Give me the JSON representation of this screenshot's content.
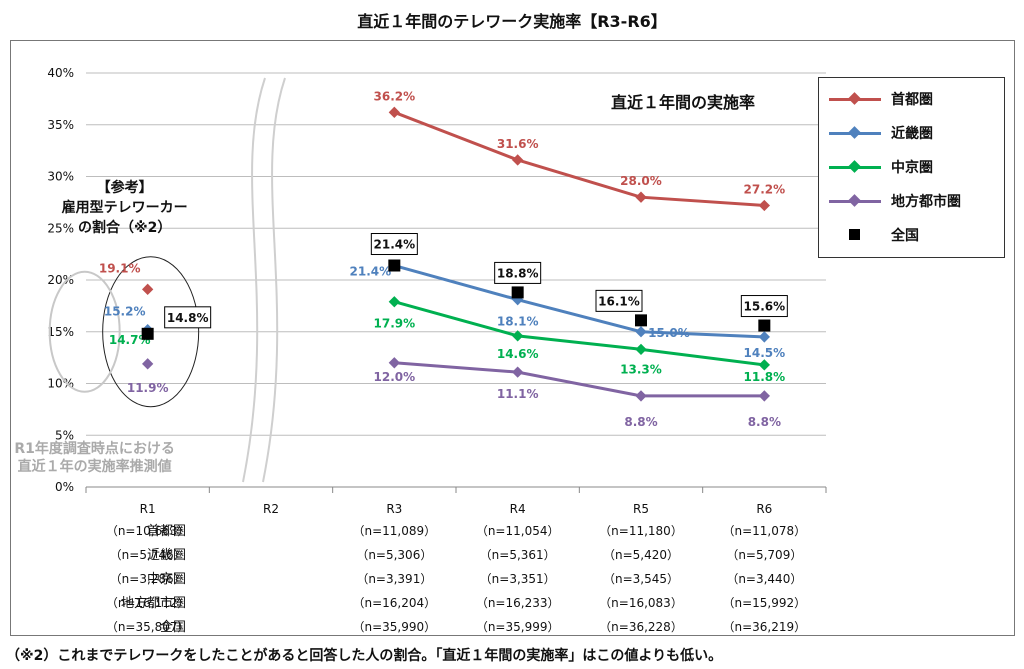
{
  "title": "直近１年間のテレワーク実施率【R3-R6】",
  "colors": {
    "shutoken": "#c0504d",
    "kinki": "#4f81bd",
    "chukyo": "#00b050",
    "chiho": "#8064a2",
    "zenkoku": "#000000"
  },
  "chart_data": {
    "type": "line",
    "categories": [
      "R1",
      "R2",
      "R3",
      "R4",
      "R5",
      "R6"
    ],
    "ylim": [
      0,
      0.4
    ],
    "yticks": [
      "0%",
      "5%",
      "10%",
      "15%",
      "20%",
      "25%",
      "30%",
      "35%",
      "40%"
    ],
    "grid": true,
    "legend_position": "top-right",
    "series": [
      {
        "name": "首都圏",
        "key": "shutoken",
        "values": [
          0.191,
          null,
          0.362,
          0.316,
          0.28,
          0.272
        ],
        "labels": [
          "19.1%",
          "",
          "36.2%",
          "31.6%",
          "28.0%",
          "27.2%"
        ]
      },
      {
        "name": "近畿圏",
        "key": "kinki",
        "values": [
          0.152,
          null,
          0.214,
          0.181,
          0.15,
          0.145
        ],
        "labels": [
          "15.2%",
          "",
          "21.4%",
          "18.1%",
          "15.0%",
          "14.5%"
        ]
      },
      {
        "name": "中京圏",
        "key": "chukyo",
        "values": [
          0.147,
          null,
          0.179,
          0.146,
          0.133,
          0.118
        ],
        "labels": [
          "14.7%",
          "",
          "17.9%",
          "14.6%",
          "13.3%",
          "11.8%"
        ]
      },
      {
        "name": "地方都市圏",
        "key": "chiho",
        "values": [
          0.119,
          null,
          0.12,
          0.111,
          0.088,
          0.088
        ],
        "labels": [
          "11.9%",
          "",
          "12.0%",
          "11.1%",
          "8.8%",
          "8.8%"
        ]
      },
      {
        "name": "全国",
        "key": "zenkoku",
        "values": [
          0.148,
          null,
          0.214,
          0.188,
          0.161,
          0.156
        ],
        "labels": [
          "14.8%",
          "",
          "21.4%",
          "18.8%",
          "16.1%",
          "15.6%"
        ]
      }
    ],
    "annotations": {
      "period_label": "直近１年間の実施率",
      "reference_lines": [
        "【参考】",
        "雇用型テレワーカー",
        "の割合（※2）"
      ],
      "estimate_lines": [
        "R1年度調査時点における",
        "直近１年の実施率推測値"
      ]
    },
    "sample_table": {
      "rows": [
        {
          "name": "首都圏",
          "cells": [
            "（n=10,663）",
            "",
            "（n=11,089）",
            "（n=11,054）",
            "（n=11,180）",
            "（n=11,078）"
          ]
        },
        {
          "name": "近畿圏",
          "cells": [
            "（n=5,746）",
            "",
            "（n=5,306）",
            "（n=5,361）",
            "（n=5,420）",
            "（n=5,709）"
          ]
        },
        {
          "name": "中京圏",
          "cells": [
            "（n=3,286）",
            "",
            "（n=3,391）",
            "（n=3,351）",
            "（n=3,545）",
            "（n=3,440）"
          ]
        },
        {
          "name": "地方都市圏",
          "cells": [
            "（n=16,112）",
            "",
            "（n=16,204）",
            "（n=16,233）",
            "（n=16,083）",
            "（n=15,992）"
          ]
        },
        {
          "name": "全国",
          "cells": [
            "（n=35,807）",
            "",
            "（n=35,990）",
            "（n=35,999）",
            "（n=36,228）",
            "（n=36,219）"
          ]
        }
      ]
    }
  },
  "footnote": "（※2）これまでテレワークをしたことがあると回答した人の割合。「直近１年間の実施率」はこの値よりも低い。"
}
